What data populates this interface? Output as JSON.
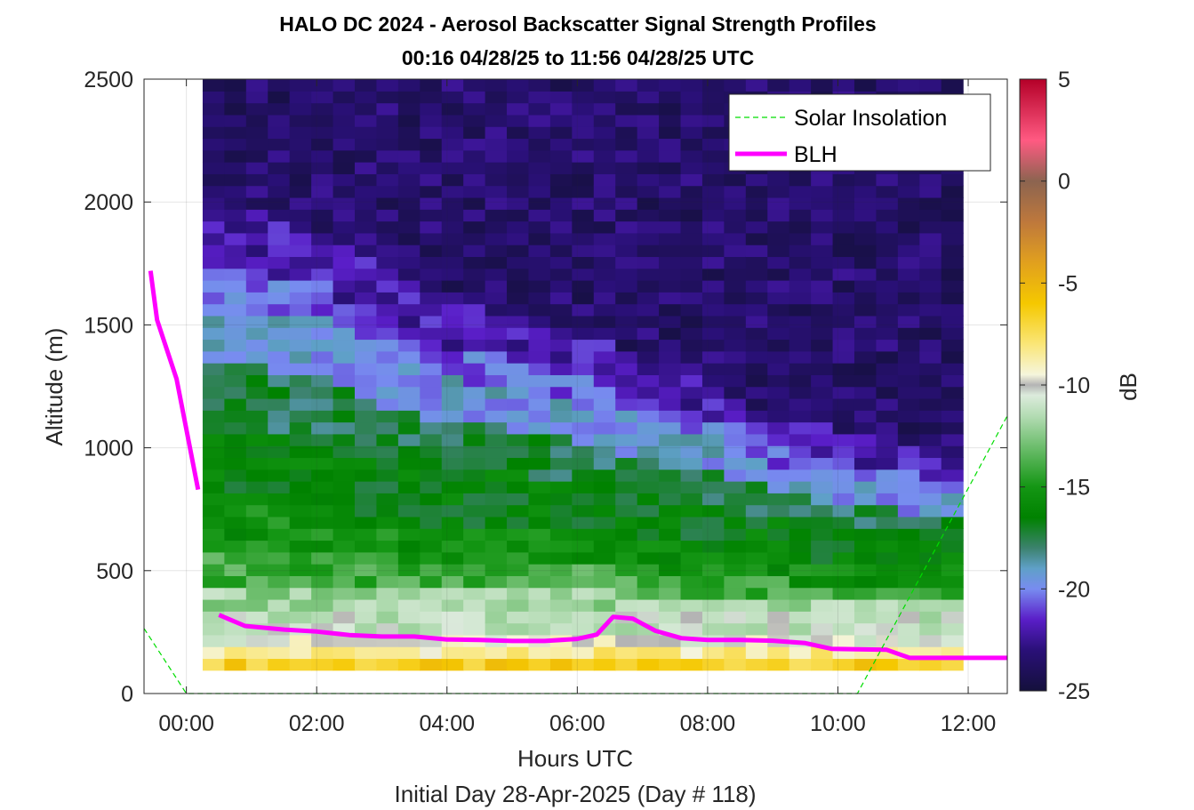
{
  "chart_data": {
    "type": "heatmap",
    "title": "HALO DC 2024 - Aerosol Backscatter Signal Strength Profiles",
    "subtitle": "00:16 04/28/25 to 11:56 04/28/25  UTC",
    "xlabel": "Hours UTC",
    "xlabel2": "Initial Day 28-Apr-2025 (Day # 118)",
    "ylabel": "Altitude (m)",
    "colorbar_label": "dB",
    "xlim": [
      -0.65,
      12.6
    ],
    "ylim": [
      0,
      2500
    ],
    "x_ticks": [
      0,
      2,
      4,
      6,
      8,
      10,
      12
    ],
    "x_tick_labels": [
      "00:00",
      "02:00",
      "04:00",
      "06:00",
      "08:00",
      "10:00",
      "12:00"
    ],
    "y_ticks": [
      0,
      500,
      1000,
      1500,
      2000,
      2500
    ],
    "y_tick_labels": [
      "0",
      "500",
      "1000",
      "1500",
      "2000",
      "2500"
    ],
    "colorbar_range": [
      -25,
      5
    ],
    "colorbar_ticks": [
      5,
      0,
      -5,
      -10,
      -15,
      -20,
      -25
    ],
    "colorbar_tick_labels": [
      "5",
      "0",
      "-5",
      "-10",
      "-15",
      "-20",
      "-25"
    ],
    "grid": true,
    "legend_location": "top-right",
    "legend": [
      {
        "label": "Solar Insolation",
        "color": "#00dd00",
        "style": "dashed"
      },
      {
        "label": "BLH",
        "color": "#ff00ff",
        "style": "solid"
      }
    ],
    "heatmap": {
      "x_start": 0.25,
      "x_end": 11.92,
      "n_columns": 35,
      "z_bottom": 95,
      "z_top": 2500,
      "level_count": 50,
      "layers": [
        {
          "top": 140,
          "db": -6.5
        },
        {
          "top": 200,
          "db": -8.5
        },
        {
          "top": 260,
          "db": -10.0
        },
        {
          "top": 330,
          "db": -11.0
        },
        {
          "top": 450,
          "db": -12.0
        },
        {
          "top": 600,
          "db": -14.0
        },
        {
          "top": 800,
          "db": -15.5
        },
        {
          "top": 1100,
          "db": -16.5
        },
        {
          "top": 1350,
          "db": -17.5
        },
        {
          "top": 1600,
          "db": -19.5
        },
        {
          "top": 1750,
          "db": -20.5
        },
        {
          "top": 2000,
          "db": -22.0
        },
        {
          "top": 2500,
          "db": -23.5
        }
      ],
      "aerosol_top_profile": {
        "hours": [
          0.25,
          1.0,
          2.0,
          3.0,
          4.0,
          5.0,
          6.0,
          7.0,
          8.0,
          9.0,
          10.0,
          11.0,
          11.92
        ],
        "heights": [
          1500,
          1470,
          1420,
          1250,
          1120,
          1100,
          1020,
          920,
          850,
          720,
          660,
          600,
          560
        ]
      }
    },
    "series": [
      {
        "name": "BLH",
        "segments": [
          {
            "x": [
              -0.55,
              -0.45,
              -0.15,
              0.18
            ],
            "y": [
              1720,
              1520,
              1280,
              830
            ]
          },
          {
            "x": [
              0.5,
              0.9,
              1.5,
              2.0,
              2.5,
              3.0,
              3.5,
              4.0,
              4.5,
              5.0,
              5.5,
              6.0,
              6.3,
              6.55,
              6.85,
              7.2,
              7.6,
              8.0,
              8.5,
              9.0,
              9.5,
              9.9,
              10.3,
              10.75,
              11.1,
              11.5,
              12.6
            ],
            "y": [
              320,
              275,
              260,
              252,
              238,
              232,
              232,
              220,
              218,
              214,
              214,
              222,
              240,
              312,
              305,
              255,
              225,
              218,
              218,
              215,
              205,
              182,
              180,
              178,
              145,
              145,
              145
            ]
          }
        ]
      },
      {
        "name": "Solar Insolation",
        "segments": [
          {
            "x": [
              -0.65,
              0.0,
              10.3,
              12.6
            ],
            "y": [
              265,
              0,
              0,
              1130
            ]
          }
        ]
      }
    ]
  }
}
